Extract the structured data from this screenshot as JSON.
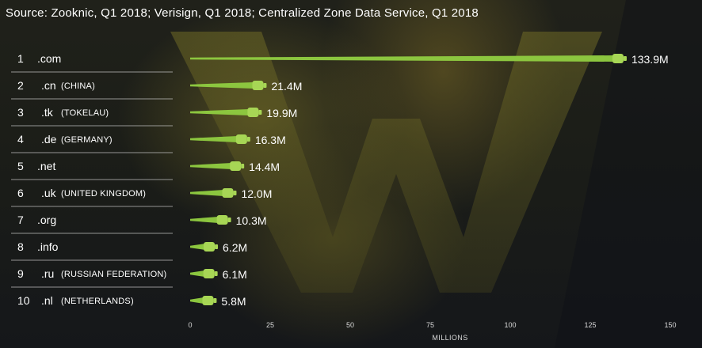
{
  "source_note": "Source: Zooknic, Q1 2018; Verisign, Q1 2018; Centralized Zone Data Service, Q1 2018",
  "colors": {
    "bar": "#8cc63f",
    "bar_cap": "#a7d655",
    "separator": "#c9c9c9",
    "text": "#ffffff"
  },
  "chart_data": {
    "type": "bar",
    "orientation": "horizontal",
    "xlabel": "MILLIONS",
    "ylabel": "",
    "xlim": [
      0,
      150
    ],
    "x_ticks": [
      "0",
      "25",
      "50",
      "75",
      "100",
      "125",
      "150"
    ],
    "grid": false,
    "rows": [
      {
        "rank": "1",
        "tld": ".com",
        "country": "",
        "value": 133.9,
        "value_label": "133.9M"
      },
      {
        "rank": "2",
        "tld": ".cn",
        "country": "(CHINA)",
        "value": 21.4,
        "value_label": "21.4M"
      },
      {
        "rank": "3",
        "tld": ".tk",
        "country": "(TOKELAU)",
        "value": 19.9,
        "value_label": "19.9M"
      },
      {
        "rank": "4",
        "tld": ".de",
        "country": "(GERMANY)",
        "value": 16.3,
        "value_label": "16.3M"
      },
      {
        "rank": "5",
        "tld": ".net",
        "country": "",
        "value": 14.4,
        "value_label": "14.4M"
      },
      {
        "rank": "6",
        "tld": ".uk",
        "country": "(UNITED KINGDOM)",
        "value": 12.0,
        "value_label": "12.0M"
      },
      {
        "rank": "7",
        "tld": ".org",
        "country": "",
        "value": 10.3,
        "value_label": "10.3M"
      },
      {
        "rank": "8",
        "tld": ".info",
        "country": "",
        "value": 6.2,
        "value_label": "6.2M"
      },
      {
        "rank": "9",
        "tld": ".ru",
        "country": "(RUSSIAN FEDERATION)",
        "value": 6.1,
        "value_label": "6.1M"
      },
      {
        "rank": "10",
        "tld": ".nl",
        "country": "(NETHERLANDS)",
        "value": 5.8,
        "value_label": "5.8M"
      }
    ]
  }
}
